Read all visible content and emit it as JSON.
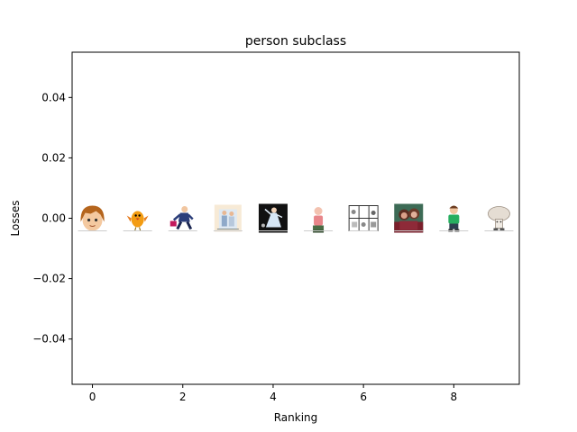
{
  "chart_data": {
    "type": "scatter",
    "title": "person subclass",
    "xlabel": "Ranking",
    "ylabel": "Losses",
    "xlim": [
      -0.45,
      9.45
    ],
    "ylim": [
      -0.055,
      0.055
    ],
    "xticks": [
      0,
      2,
      4,
      6,
      8
    ],
    "xtick_labels": [
      "0",
      "2",
      "4",
      "6",
      "8"
    ],
    "yticks": [
      -0.04,
      -0.02,
      0.0,
      0.02,
      0.04
    ],
    "ytick_labels": [
      "−0.04",
      "−0.02",
      "0.00",
      "0.02",
      "0.04"
    ],
    "grid": false,
    "points": [
      {
        "x": 0,
        "y": 0.0,
        "thumbnail": "cartoon-boy-brown-hair-icon"
      },
      {
        "x": 1,
        "y": 0.0,
        "thumbnail": "orange-bird-character-icon"
      },
      {
        "x": 2,
        "y": 0.0,
        "thumbnail": "running-man-suit-icon"
      },
      {
        "x": 3,
        "y": 0.0,
        "thumbnail": "family-beige-frame-icon"
      },
      {
        "x": 4,
        "y": 0.0,
        "thumbnail": "dancer-dark-background-icon"
      },
      {
        "x": 5,
        "y": 0.0,
        "thumbnail": "bald-man-pink-icon"
      },
      {
        "x": 6,
        "y": 0.0,
        "thumbnail": "comic-strip-icon"
      },
      {
        "x": 7,
        "y": 0.0,
        "thumbnail": "couple-portrait-icon"
      },
      {
        "x": 8,
        "y": 0.0,
        "thumbnail": "green-shirt-boy-icon"
      },
      {
        "x": 9,
        "y": 0.0,
        "thumbnail": "mushroom-figure-icon"
      }
    ]
  }
}
